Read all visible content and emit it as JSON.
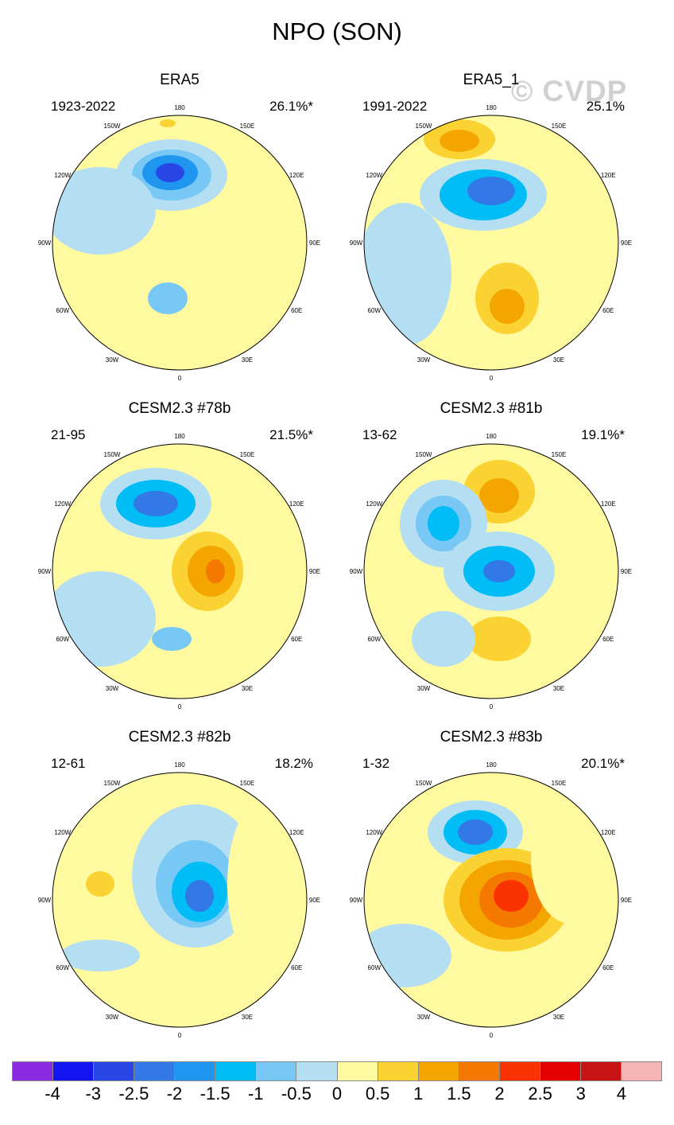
{
  "title": "NPO (SON)",
  "watermark": "© CVDP",
  "lon_labels": [
    "180",
    "150E",
    "120E",
    "90E",
    "60E",
    "30E",
    "0",
    "30W",
    "60W",
    "90W",
    "120W",
    "150W"
  ],
  "panels": [
    {
      "title": "ERA5",
      "period": "1923-2022",
      "pct": "26.1%*"
    },
    {
      "title": "ERA5_1",
      "period": "1991-2022",
      "pct": "25.1%"
    },
    {
      "title": "CESM2.3 #78b",
      "period": "21-95",
      "pct": "21.5%*"
    },
    {
      "title": "CESM2.3 #81b",
      "period": "13-62",
      "pct": "19.1%*"
    },
    {
      "title": "CESM2.3 #82b",
      "period": "12-61",
      "pct": "18.2%"
    },
    {
      "title": "CESM2.3 #83b",
      "period": "1-32",
      "pct": "20.1%*"
    }
  ],
  "colorbar": {
    "colors": [
      "#8a2be2",
      "#1414f0",
      "#2846e6",
      "#3278e6",
      "#1e96f0",
      "#00bef5",
      "#78c8f5",
      "#b4def2",
      "#fffaa0",
      "#fad232",
      "#f5a500",
      "#f57800",
      "#fa3200",
      "#e60000",
      "#c81414",
      "#f5b4b4"
    ],
    "labels": [
      "-4",
      "-3",
      "-2.5",
      "-2",
      "-1.5",
      "-1",
      "-0.5",
      "0",
      "0.5",
      "1",
      "1.5",
      "2",
      "2.5",
      "3",
      "4"
    ]
  }
}
